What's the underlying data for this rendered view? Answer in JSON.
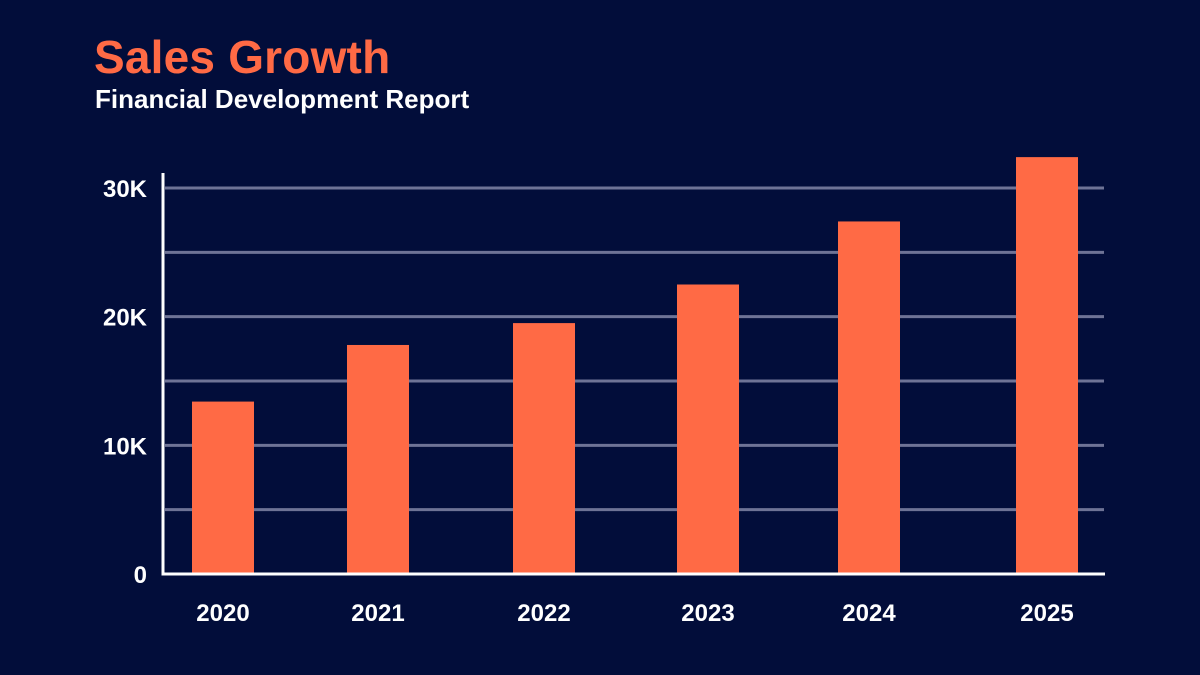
{
  "header": {
    "title": "Sales Growth",
    "subtitle": "Financial Development Report"
  },
  "colors": {
    "background": "#020d3a",
    "bar": "#ff6a45",
    "title": "#ff6a45",
    "gridline": "#6e7396",
    "axis": "#ffffff",
    "text": "#ffffff"
  },
  "chart_data": {
    "type": "bar",
    "title": "Sales Growth",
    "subtitle": "Financial Development Report",
    "xlabel": "",
    "ylabel": "",
    "categories": [
      "2020",
      "2021",
      "2022",
      "2023",
      "2024",
      "2025"
    ],
    "values": [
      13400,
      17800,
      19500,
      22500,
      27400,
      32400
    ],
    "ylim": [
      0,
      30000
    ],
    "yticks": [
      0,
      10000,
      20000,
      30000
    ],
    "ytick_labels": [
      "0",
      "10K",
      "20K",
      "30K"
    ],
    "gridlines": [
      5000,
      10000,
      15000,
      20000,
      25000,
      30000
    ],
    "grid": true,
    "legend": "none"
  }
}
